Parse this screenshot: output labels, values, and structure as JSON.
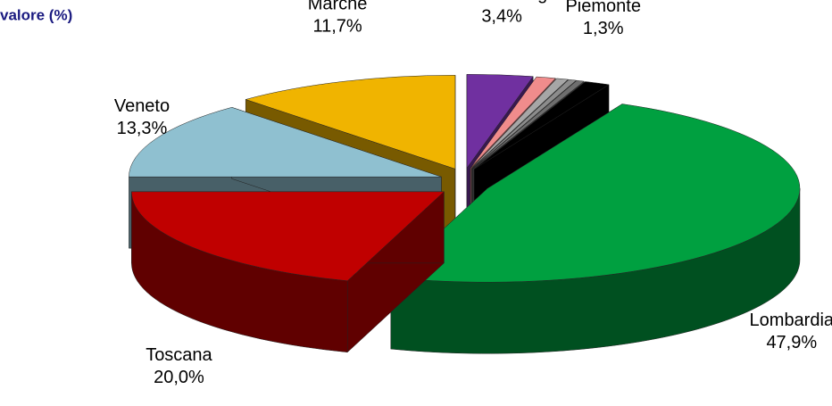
{
  "chart_data": {
    "type": "pie3d",
    "title": "valore (%)",
    "categories": [
      "Emilia Romagna",
      null,
      null,
      null,
      null,
      "Piemonte",
      "Lombardia",
      "Toscana",
      "Veneto",
      "Marche"
    ],
    "values": [
      3.4,
      1.0,
      0.6,
      0.4,
      0.4,
      1.3,
      47.9,
      20.0,
      13.3,
      11.7
    ],
    "value_labels": [
      "3,4%",
      null,
      null,
      null,
      null,
      "1,3%",
      "47,9%",
      "20,0%",
      "13,3%",
      "11,7%"
    ],
    "colors": [
      "#7030a0",
      "#f08c8c",
      "#a6a6a6",
      "#8c8c8c",
      "#6e6e6e",
      "#000000",
      "#00a040",
      "#c00000",
      "#8fc0d0",
      "#f0b400"
    ]
  }
}
